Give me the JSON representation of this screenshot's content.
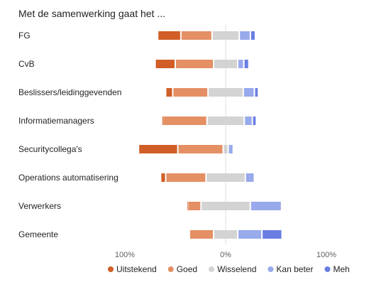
{
  "chart_data": {
    "type": "bar",
    "stacked": "diverging",
    "title": "Met de samenwerking gaat het ...",
    "categories": [
      "FG",
      "CvB",
      "Beslissers/leidinggevenden",
      "Informatiemanagers",
      "Securitycollega's",
      "Operations automatisering",
      "Verwerkers",
      "Gemeente"
    ],
    "series": [
      {
        "name": "Uitstekend",
        "color": "#d15e26",
        "values": [
          23,
          20,
          7,
          1,
          39,
          5,
          1,
          0
        ]
      },
      {
        "name": "Goed",
        "color": "#e48f64",
        "values": [
          31,
          38,
          35,
          44,
          45,
          40,
          13,
          24
        ]
      },
      {
        "name": "Wisselend",
        "color": "#d3d3d3",
        "values": [
          27,
          24,
          35,
          37,
          5,
          39,
          49,
          24
        ]
      },
      {
        "name": "Kan beter",
        "color": "#98a9ec",
        "values": [
          11,
          6,
          11,
          8,
          5,
          9,
          31,
          24
        ]
      },
      {
        "name": "Meh",
        "color": "#6a7de2",
        "values": [
          5,
          5,
          4,
          4,
          0,
          0,
          0,
          20
        ]
      }
    ],
    "x_axis": {
      "min": -100,
      "max": 100,
      "tick_labels": [
        "100%",
        "0%",
        "100%"
      ]
    },
    "legend": {
      "position": "bottom-right"
    },
    "grid": false
  }
}
